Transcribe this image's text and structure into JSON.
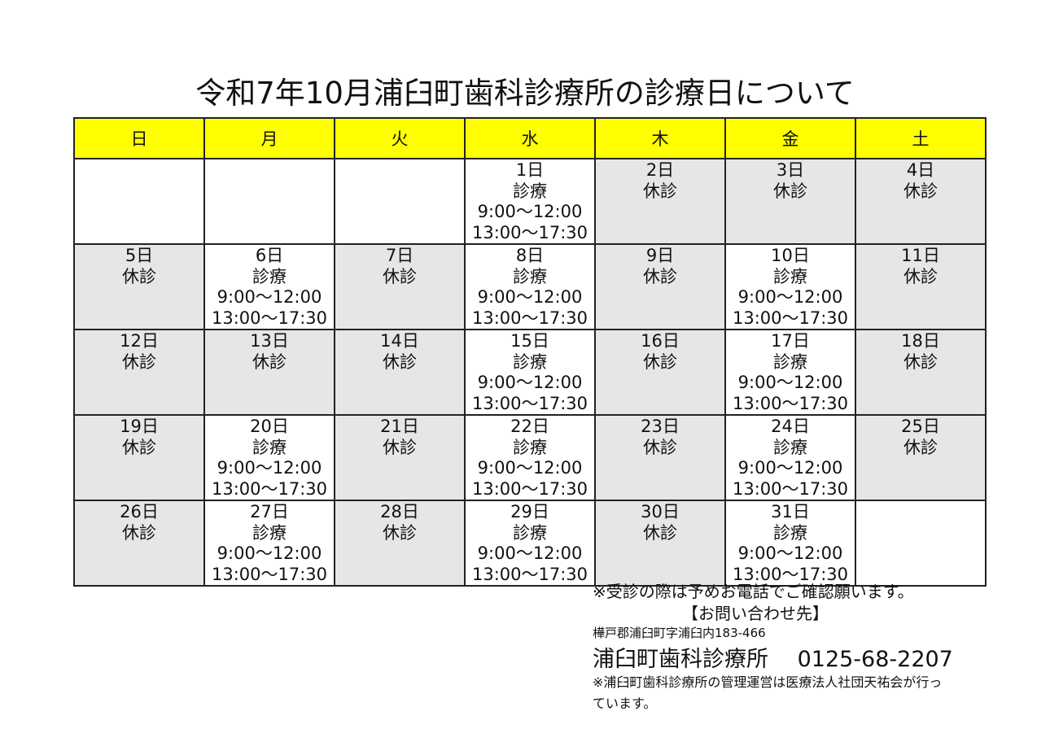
{
  "title": "令和7年10月浦臼町歯科診療所の診療日について",
  "weekdays": [
    "日",
    "月",
    "火",
    "水",
    "木",
    "金",
    "土"
  ],
  "colors": {
    "header_bg": "#ffff00",
    "closed_bg": "#e6e6e6",
    "open_bg": "#ffffff"
  },
  "weeks": [
    [
      null,
      null,
      null,
      {
        "day": "1日",
        "status": "診療",
        "hours": [
          "9:00〜12:00",
          "13:00〜17:30"
        ]
      },
      {
        "day": "2日",
        "status": "休診",
        "hours": []
      },
      {
        "day": "3日",
        "status": "休診",
        "hours": []
      },
      {
        "day": "4日",
        "status": "休診",
        "hours": []
      }
    ],
    [
      {
        "day": "5日",
        "status": "休診",
        "hours": []
      },
      {
        "day": "6日",
        "status": "診療",
        "hours": [
          "9:00〜12:00",
          "13:00〜17:30"
        ]
      },
      {
        "day": "7日",
        "status": "休診",
        "hours": []
      },
      {
        "day": "8日",
        "status": "診療",
        "hours": [
          "9:00〜12:00",
          "13:00〜17:30"
        ]
      },
      {
        "day": "9日",
        "status": "休診",
        "hours": []
      },
      {
        "day": "10日",
        "status": "診療",
        "hours": [
          "9:00〜12:00",
          "13:00〜17:30"
        ]
      },
      {
        "day": "11日",
        "status": "休診",
        "hours": []
      }
    ],
    [
      {
        "day": "12日",
        "status": "休診",
        "hours": []
      },
      {
        "day": "13日",
        "status": "休診",
        "hours": []
      },
      {
        "day": "14日",
        "status": "休診",
        "hours": []
      },
      {
        "day": "15日",
        "status": "診療",
        "hours": [
          "9:00〜12:00",
          "13:00〜17:30"
        ]
      },
      {
        "day": "16日",
        "status": "休診",
        "hours": []
      },
      {
        "day": "17日",
        "status": "診療",
        "hours": [
          "9:00〜12:00",
          "13:00〜17:30"
        ]
      },
      {
        "day": "18日",
        "status": "休診",
        "hours": []
      }
    ],
    [
      {
        "day": "19日",
        "status": "休診",
        "hours": []
      },
      {
        "day": "20日",
        "status": "診療",
        "hours": [
          "9:00〜12:00",
          "13:00〜17:30"
        ]
      },
      {
        "day": "21日",
        "status": "休診",
        "hours": []
      },
      {
        "day": "22日",
        "status": "診療",
        "hours": [
          "9:00〜12:00",
          "13:00〜17:30"
        ]
      },
      {
        "day": "23日",
        "status": "休診",
        "hours": []
      },
      {
        "day": "24日",
        "status": "診療",
        "hours": [
          "9:00〜12:00",
          "13:00〜17:30"
        ]
      },
      {
        "day": "25日",
        "status": "休診",
        "hours": []
      }
    ],
    [
      {
        "day": "26日",
        "status": "休診",
        "hours": []
      },
      {
        "day": "27日",
        "status": "診療",
        "hours": [
          "9:00〜12:00",
          "13:00〜17:30"
        ]
      },
      {
        "day": "28日",
        "status": "休診",
        "hours": []
      },
      {
        "day": "29日",
        "status": "診療",
        "hours": [
          "9:00〜12:00",
          "13:00〜17:30"
        ]
      },
      {
        "day": "30日",
        "status": "休診",
        "hours": []
      },
      {
        "day": "31日",
        "status": "診療",
        "hours": [
          "9:00〜12:00",
          "13:00〜17:30"
        ]
      },
      null
    ]
  ],
  "footer": {
    "note": "※受診の際は予めお電話でご確認願います。",
    "contact_heading": "【お問い合わせ先】",
    "address": "樺戸郡浦臼町字浦臼内183-466",
    "clinic_name": "浦臼町歯科診療所",
    "phone": "0125-68-2207",
    "management_note": "※浦臼町歯科診療所の管理運営は医療法人社団天祐会が行っています。"
  }
}
